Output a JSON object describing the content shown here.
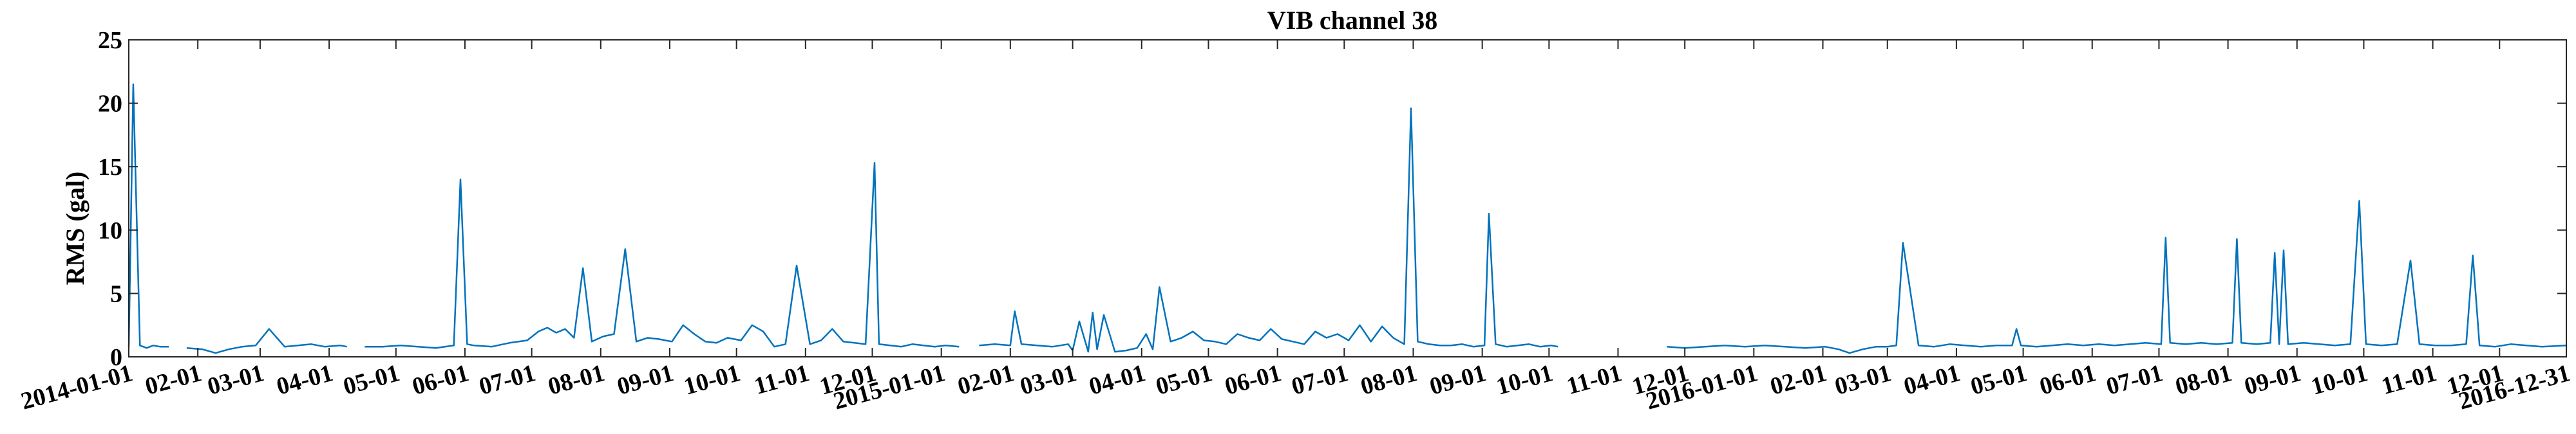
{
  "chart_data": {
    "type": "line",
    "title": "VIB channel 38",
    "xlabel": "",
    "ylabel": "RMS (gal)",
    "ylim": [
      0,
      25
    ],
    "yticks": [
      0,
      5,
      10,
      15,
      20,
      25
    ],
    "xlim": [
      "2014-01-01",
      "2016-12-31"
    ],
    "grid": false,
    "line_color": "#0072BD",
    "xticks": [
      {
        "date": "2014-01-01",
        "label": "2014-01-01"
      },
      {
        "date": "2014-02-01",
        "label": "02-01"
      },
      {
        "date": "2014-03-01",
        "label": "03-01"
      },
      {
        "date": "2014-04-01",
        "label": "04-01"
      },
      {
        "date": "2014-05-01",
        "label": "05-01"
      },
      {
        "date": "2014-06-01",
        "label": "06-01"
      },
      {
        "date": "2014-07-01",
        "label": "07-01"
      },
      {
        "date": "2014-08-01",
        "label": "08-01"
      },
      {
        "date": "2014-09-01",
        "label": "09-01"
      },
      {
        "date": "2014-10-01",
        "label": "10-01"
      },
      {
        "date": "2014-11-01",
        "label": "11-01"
      },
      {
        "date": "2014-12-01",
        "label": "12-01"
      },
      {
        "date": "2015-01-01",
        "label": "2015-01-01"
      },
      {
        "date": "2015-02-01",
        "label": "02-01"
      },
      {
        "date": "2015-03-01",
        "label": "03-01"
      },
      {
        "date": "2015-04-01",
        "label": "04-01"
      },
      {
        "date": "2015-05-01",
        "label": "05-01"
      },
      {
        "date": "2015-06-01",
        "label": "06-01"
      },
      {
        "date": "2015-07-01",
        "label": "07-01"
      },
      {
        "date": "2015-08-01",
        "label": "08-01"
      },
      {
        "date": "2015-09-01",
        "label": "09-01"
      },
      {
        "date": "2015-10-01",
        "label": "10-01"
      },
      {
        "date": "2015-11-01",
        "label": "11-01"
      },
      {
        "date": "2015-12-01",
        "label": "12-01"
      },
      {
        "date": "2016-01-01",
        "label": "2016-01-01"
      },
      {
        "date": "2016-02-01",
        "label": "02-01"
      },
      {
        "date": "2016-03-01",
        "label": "03-01"
      },
      {
        "date": "2016-04-01",
        "label": "04-01"
      },
      {
        "date": "2016-05-01",
        "label": "05-01"
      },
      {
        "date": "2016-06-01",
        "label": "06-01"
      },
      {
        "date": "2016-07-01",
        "label": "07-01"
      },
      {
        "date": "2016-08-01",
        "label": "08-01"
      },
      {
        "date": "2016-09-01",
        "label": "09-01"
      },
      {
        "date": "2016-10-01",
        "label": "10-01"
      },
      {
        "date": "2016-11-01",
        "label": "11-01"
      },
      {
        "date": "2016-12-01",
        "label": "12-01"
      },
      {
        "date": "2016-12-31",
        "label": "2016-12-31"
      }
    ],
    "series": [
      {
        "segments": [
          {
            "x": [
              "2014-01-01",
              "2014-01-03",
              "2014-01-06",
              "2014-01-09",
              "2014-01-12",
              "2014-01-15",
              "2014-01-19"
            ],
            "y": [
              0.8,
              21.5,
              0.9,
              0.7,
              0.9,
              0.8,
              0.8
            ]
          },
          {
            "x": [
              "2014-01-27",
              "2014-02-03",
              "2014-02-09",
              "2014-02-15",
              "2014-02-21",
              "2014-02-27",
              "2014-03-05",
              "2014-03-12",
              "2014-03-18",
              "2014-03-24",
              "2014-03-30",
              "2014-04-06",
              "2014-04-09"
            ],
            "y": [
              0.7,
              0.6,
              0.3,
              0.6,
              0.8,
              0.9,
              2.2,
              0.8,
              0.9,
              1.0,
              0.8,
              0.9,
              0.8
            ]
          },
          {
            "x": [
              "2014-04-17",
              "2014-04-25",
              "2014-05-03",
              "2014-05-11",
              "2014-05-19",
              "2014-05-27",
              "2014-05-30",
              "2014-06-02",
              "2014-06-05",
              "2014-06-13",
              "2014-06-21",
              "2014-06-29",
              "2014-07-04",
              "2014-07-08",
              "2014-07-12",
              "2014-07-16",
              "2014-07-20",
              "2014-07-24",
              "2014-07-28",
              "2014-08-02",
              "2014-08-07",
              "2014-08-12",
              "2014-08-17",
              "2014-08-22",
              "2014-08-27",
              "2014-09-02",
              "2014-09-07",
              "2014-09-12",
              "2014-09-17",
              "2014-09-22",
              "2014-09-27",
              "2014-10-03",
              "2014-10-08",
              "2014-10-13",
              "2014-10-18",
              "2014-10-23",
              "2014-10-28",
              "2014-11-03",
              "2014-11-08",
              "2014-11-13",
              "2014-11-18",
              "2014-11-23",
              "2014-11-28",
              "2014-12-02",
              "2014-12-04",
              "2014-12-09",
              "2014-12-14",
              "2014-12-19",
              "2014-12-24",
              "2014-12-29",
              "2015-01-03",
              "2015-01-09"
            ],
            "y": [
              0.8,
              0.8,
              0.9,
              0.8,
              0.7,
              0.9,
              14.0,
              1.0,
              0.9,
              0.8,
              1.1,
              1.3,
              2.0,
              2.3,
              1.9,
              2.2,
              1.5,
              7.0,
              1.2,
              1.6,
              1.8,
              8.5,
              1.2,
              1.5,
              1.4,
              1.2,
              2.5,
              1.8,
              1.2,
              1.1,
              1.5,
              1.3,
              2.5,
              2.0,
              0.8,
              1.0,
              7.2,
              1.0,
              1.3,
              2.2,
              1.2,
              1.1,
              1.0,
              15.3,
              1.0,
              0.9,
              0.8,
              1.0,
              0.9,
              0.8,
              0.9,
              0.8
            ]
          },
          {
            "x": [
              "2015-01-18",
              "2015-01-25",
              "2015-02-01",
              "2015-02-03",
              "2015-02-06",
              "2015-02-13",
              "2015-02-20",
              "2015-02-27",
              "2015-03-01",
              "2015-03-04",
              "2015-03-08",
              "2015-03-10",
              "2015-03-12",
              "2015-03-15",
              "2015-03-20",
              "2015-03-25",
              "2015-03-30",
              "2015-04-03",
              "2015-04-06",
              "2015-04-09",
              "2015-04-14",
              "2015-04-19",
              "2015-04-24",
              "2015-04-29",
              "2015-05-04",
              "2015-05-09",
              "2015-05-14",
              "2015-05-19",
              "2015-05-24",
              "2015-05-29",
              "2015-06-03",
              "2015-06-08",
              "2015-06-13",
              "2015-06-18",
              "2015-06-23",
              "2015-06-28",
              "2015-07-03",
              "2015-07-08",
              "2015-07-13",
              "2015-07-18",
              "2015-07-23",
              "2015-07-28",
              "2015-07-31",
              "2015-08-03",
              "2015-08-08",
              "2015-08-13",
              "2015-08-18",
              "2015-08-23",
              "2015-08-28",
              "2015-09-02",
              "2015-09-04",
              "2015-09-07",
              "2015-09-12",
              "2015-09-17",
              "2015-09-22",
              "2015-09-27",
              "2015-10-02",
              "2015-10-05"
            ],
            "y": [
              0.9,
              1.0,
              0.9,
              3.6,
              1.0,
              0.9,
              0.8,
              1.0,
              0.5,
              2.8,
              0.4,
              3.5,
              0.6,
              3.3,
              0.4,
              0.5,
              0.7,
              1.8,
              0.6,
              5.5,
              1.2,
              1.5,
              2.0,
              1.3,
              1.2,
              1.0,
              1.8,
              1.5,
              1.3,
              2.2,
              1.4,
              1.2,
              1.0,
              2.0,
              1.5,
              1.8,
              1.3,
              2.5,
              1.2,
              2.4,
              1.5,
              1.0,
              19.6,
              1.2,
              1.0,
              0.9,
              0.9,
              1.0,
              0.8,
              0.9,
              11.3,
              1.0,
              0.8,
              0.9,
              1.0,
              0.8,
              0.9,
              0.8
            ]
          },
          {
            "x": [
              "2015-11-23",
              "2015-12-01",
              "2015-12-10",
              "2015-12-19",
              "2015-12-28",
              "2016-01-06",
              "2016-01-15",
              "2016-01-24",
              "2016-02-02",
              "2016-02-08",
              "2016-02-13",
              "2016-02-19",
              "2016-02-25",
              "2016-03-01",
              "2016-03-05",
              "2016-03-08",
              "2016-03-15",
              "2016-03-22",
              "2016-03-29",
              "2016-04-05",
              "2016-04-12",
              "2016-04-19",
              "2016-04-26",
              "2016-04-28",
              "2016-04-30",
              "2016-05-07",
              "2016-05-14",
              "2016-05-21",
              "2016-05-28",
              "2016-06-04",
              "2016-06-11",
              "2016-06-18",
              "2016-06-25",
              "2016-07-02",
              "2016-07-04",
              "2016-07-06",
              "2016-07-13",
              "2016-07-20",
              "2016-07-27",
              "2016-08-03",
              "2016-08-05",
              "2016-08-07",
              "2016-08-14",
              "2016-08-20",
              "2016-08-22",
              "2016-08-24",
              "2016-08-26",
              "2016-08-28",
              "2016-09-04",
              "2016-09-11",
              "2016-09-18",
              "2016-09-25",
              "2016-09-29",
              "2016-10-02",
              "2016-10-09",
              "2016-10-16",
              "2016-10-22",
              "2016-10-26",
              "2016-11-02",
              "2016-11-09",
              "2016-11-16",
              "2016-11-19",
              "2016-11-22",
              "2016-11-29",
              "2016-12-06",
              "2016-12-13",
              "2016-12-20",
              "2016-12-31"
            ],
            "y": [
              0.8,
              0.7,
              0.8,
              0.9,
              0.8,
              0.9,
              0.8,
              0.7,
              0.8,
              0.6,
              0.3,
              0.6,
              0.8,
              0.8,
              0.9,
              9.0,
              0.9,
              0.8,
              1.0,
              0.9,
              0.8,
              0.9,
              0.9,
              2.2,
              0.9,
              0.8,
              0.9,
              1.0,
              0.9,
              1.0,
              0.9,
              1.0,
              1.1,
              1.0,
              9.4,
              1.1,
              1.0,
              1.1,
              1.0,
              1.1,
              9.3,
              1.1,
              1.0,
              1.1,
              8.2,
              1.0,
              8.4,
              1.0,
              1.1,
              1.0,
              0.9,
              1.0,
              12.3,
              1.0,
              0.9,
              1.0,
              7.6,
              1.0,
              0.9,
              0.9,
              1.0,
              8.0,
              0.9,
              0.8,
              1.0,
              0.9,
              0.8,
              0.9
            ]
          }
        ]
      }
    ]
  }
}
